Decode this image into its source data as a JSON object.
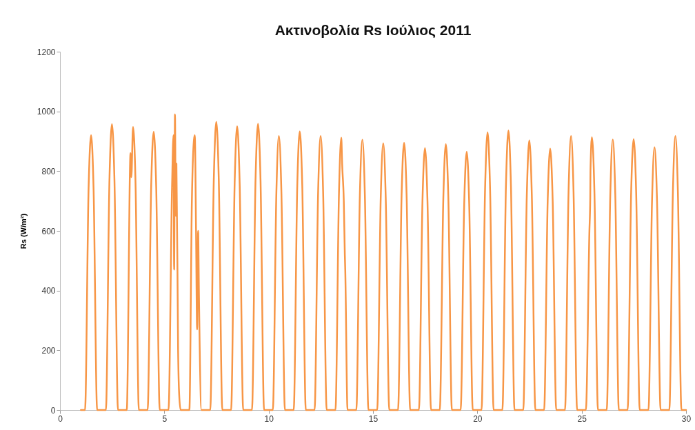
{
  "chart_data": {
    "type": "line",
    "title": "Ακτινοβολία Rs Ιούλιος 2011",
    "ylabel": "Rs (W/m²)",
    "x": [
      1,
      1.2,
      1.37,
      1.49,
      1.61,
      1.78,
      2.2,
      2.37,
      2.49,
      2.61,
      2.78,
      3.2,
      3.38,
      3.42,
      3.5,
      3.62,
      3.78,
      4.2,
      4.37,
      4.49,
      4.61,
      4.78,
      5.2,
      5.37,
      5.44,
      5.47,
      5.51,
      5.55,
      5.58,
      5.66,
      5.7,
      5.78,
      6.2,
      6.32,
      6.42,
      6.46,
      6.52,
      6.57,
      6.62,
      6.66,
      6.78,
      7.2,
      7.37,
      7.49,
      7.61,
      7.78,
      8.2,
      8.37,
      8.49,
      8.61,
      8.78,
      9.2,
      9.37,
      9.49,
      9.61,
      9.78,
      10.2,
      10.37,
      10.49,
      10.61,
      10.78,
      11.2,
      11.37,
      11.49,
      11.61,
      11.78,
      12.2,
      12.37,
      12.49,
      12.61,
      12.78,
      13.2,
      13.37,
      13.48,
      13.52,
      13.6,
      13.65,
      13.67,
      13.78,
      14.2,
      14.37,
      14.49,
      14.61,
      14.78,
      15.2,
      15.37,
      15.49,
      15.61,
      15.78,
      16.2,
      16.37,
      16.49,
      16.61,
      16.78,
      17.2,
      17.37,
      17.49,
      17.61,
      17.78,
      18.2,
      18.37,
      18.49,
      18.61,
      18.78,
      19.2,
      19.37,
      19.49,
      19.61,
      19.78,
      20.2,
      20.37,
      20.49,
      20.61,
      20.78,
      21.2,
      21.37,
      21.49,
      21.61,
      21.78,
      22.2,
      22.37,
      22.49,
      22.61,
      22.78,
      23.2,
      23.37,
      23.49,
      23.61,
      23.78,
      24.2,
      24.37,
      24.49,
      24.61,
      24.78,
      25.2,
      25.37,
      25.41,
      25.42,
      25.49,
      25.61,
      25.78,
      26.2,
      26.37,
      26.49,
      26.61,
      26.78,
      27.2,
      27.37,
      27.49,
      27.61,
      27.78,
      28.2,
      28.37,
      28.49,
      28.61,
      28.78,
      29.2,
      29.37,
      29.49,
      29.61,
      29.78,
      30
    ],
    "series": [
      {
        "color": "#f79646",
        "values": [
          0,
          0,
          740,
          920,
          740,
          0,
          0,
          770,
          957,
          770,
          0,
          0,
          860,
          780,
          948,
          760,
          0,
          0,
          750,
          932,
          750,
          0,
          0,
          750,
          920,
          470,
          990,
          650,
          825,
          200,
          70,
          0,
          0,
          700,
          905,
          920,
          600,
          270,
          600,
          380,
          0,
          0,
          770,
          965,
          770,
          0,
          0,
          760,
          950,
          760,
          0,
          0,
          770,
          958,
          770,
          0,
          0,
          730,
          918,
          730,
          0,
          0,
          750,
          933,
          750,
          0,
          0,
          730,
          918,
          730,
          0,
          0,
          730,
          912,
          825,
          700,
          520,
          470,
          0,
          0,
          720,
          905,
          720,
          0,
          0,
          710,
          893,
          710,
          0,
          0,
          720,
          895,
          720,
          0,
          0,
          700,
          877,
          700,
          0,
          0,
          710,
          890,
          710,
          0,
          0,
          690,
          865,
          690,
          0,
          0,
          740,
          930,
          740,
          0,
          0,
          750,
          936,
          750,
          0,
          0,
          720,
          903,
          720,
          0,
          0,
          700,
          875,
          700,
          0,
          0,
          730,
          918,
          730,
          0,
          0,
          600,
          710,
          800,
          913,
          730,
          0,
          0,
          720,
          906,
          720,
          0,
          0,
          730,
          907,
          730,
          0,
          0,
          700,
          880,
          700,
          0,
          0,
          730,
          918,
          730,
          0,
          0
        ]
      }
    ],
    "xlim": [
      0,
      30
    ],
    "xticks": [
      0,
      5,
      10,
      15,
      20,
      25,
      30
    ],
    "ylim": [
      0,
      1200
    ],
    "yticks": [
      0,
      200,
      400,
      600,
      800,
      1000,
      1200
    ],
    "line_style": "solid"
  }
}
